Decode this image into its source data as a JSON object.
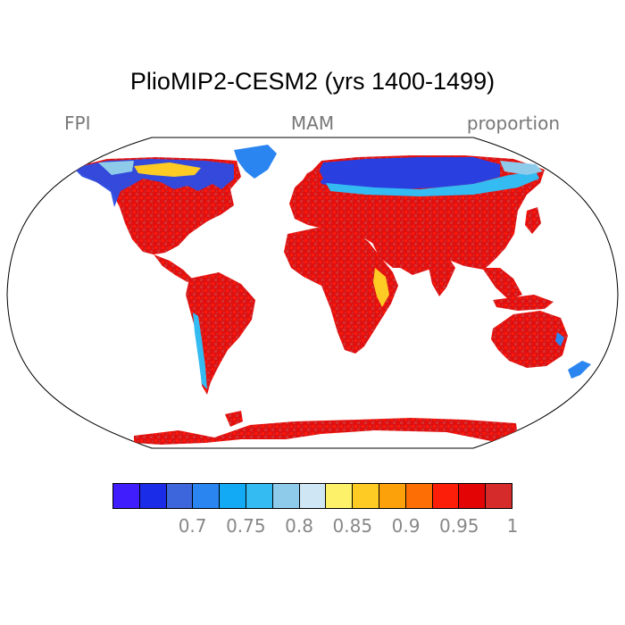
{
  "title": "PlioMIP2-CESM2 (yrs 1400-1499)",
  "left_label": "FPI",
  "center_label": "MAM",
  "right_label": "proportion",
  "colorbar": {
    "colors": [
      "#3f1dfd",
      "#1b2ce8",
      "#3d66dc",
      "#2a85f1",
      "#12a9f5",
      "#33bbf2",
      "#8ecbeb",
      "#cfe6f5",
      "#fef16a",
      "#fdcb23",
      "#fda10b",
      "#fd6f05",
      "#fd1e0a",
      "#e30505",
      "#d62b2b"
    ],
    "tick_labels": [
      "0.7",
      "0.75",
      "0.8",
      "0.85",
      "0.9",
      "0.95",
      "1"
    ]
  }
}
